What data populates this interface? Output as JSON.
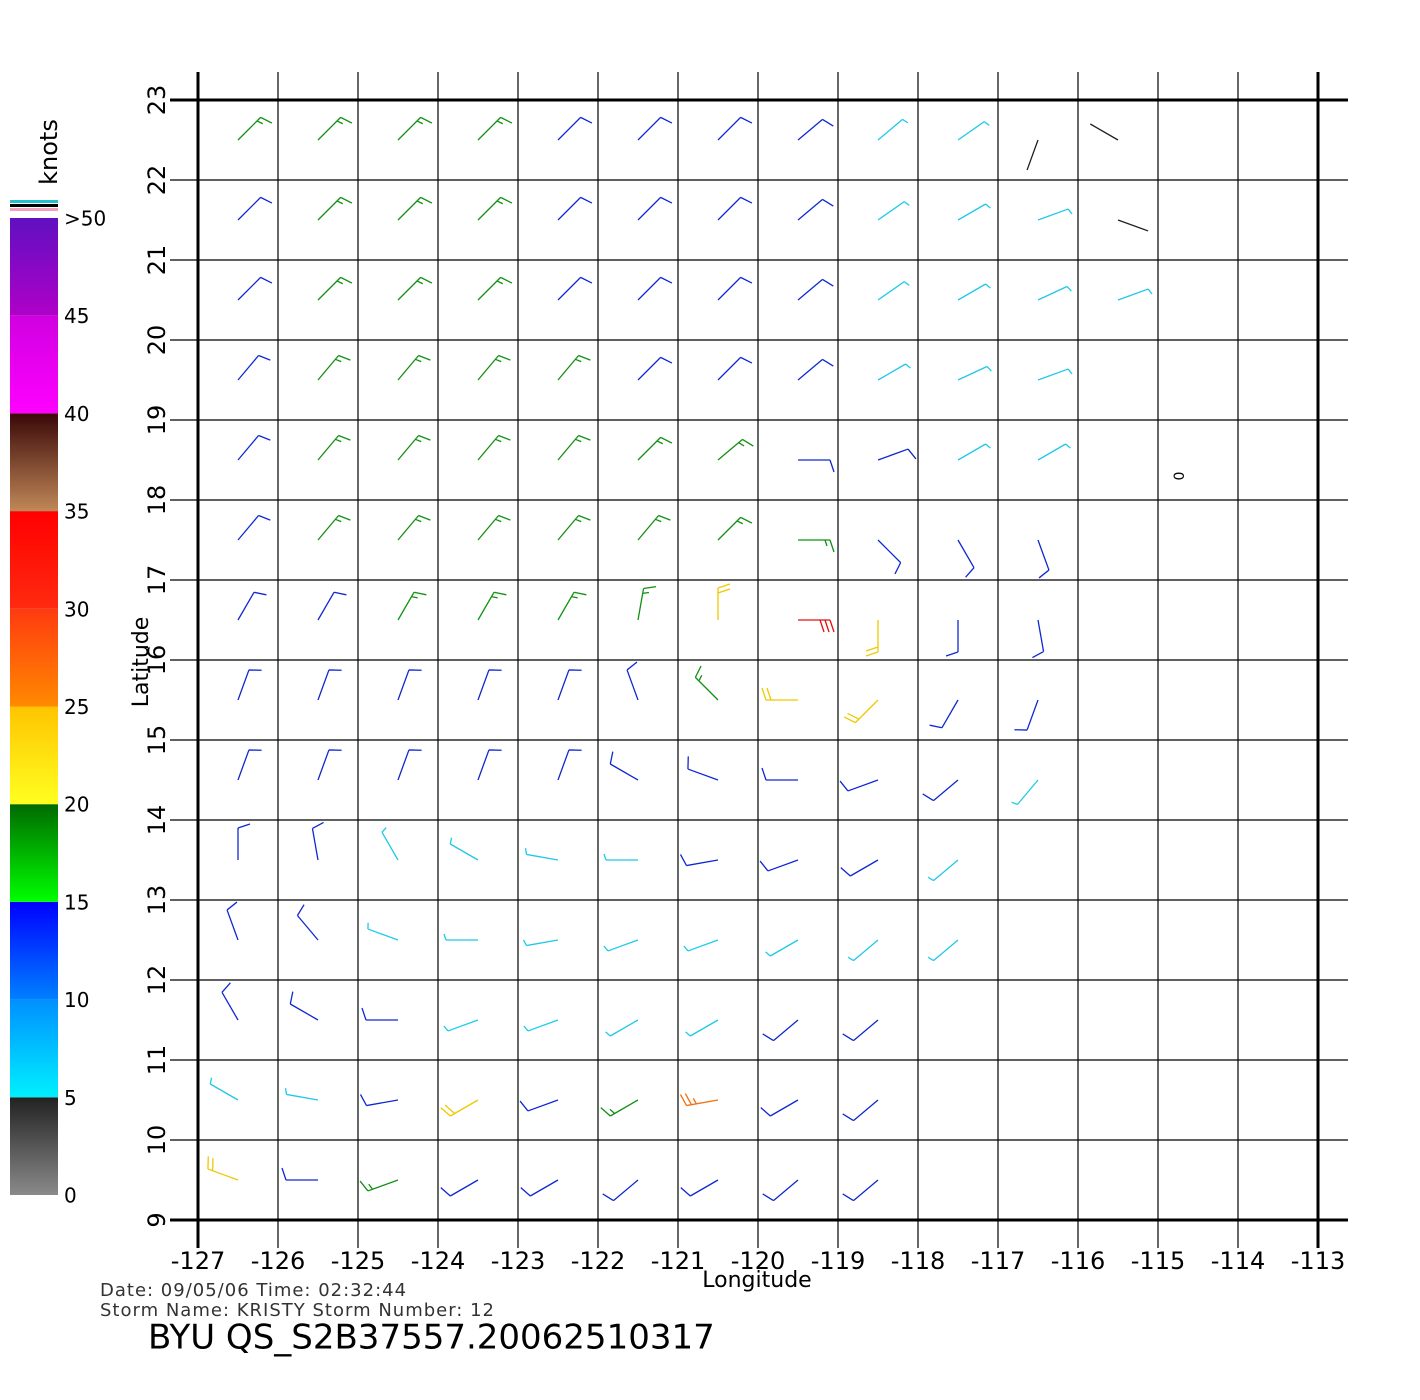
{
  "chart_data": {
    "type": "wind-barb",
    "title": "BYU  QS_S2B37557.20062510317",
    "info": [
      "Date:  09/05/06    Time:  02:32:44",
      "Storm  Name:  KRISTY    Storm  Number:  12"
    ],
    "x_label": "Longitude",
    "y_label": "Latitude",
    "annotation": "0",
    "xlim": [
      -127,
      -113
    ],
    "ylim": [
      9,
      23
    ],
    "xticks": [
      -127,
      -126,
      -125,
      -124,
      -123,
      -122,
      -121,
      -120,
      -119,
      -118,
      -117,
      -116,
      -115,
      -114,
      -113
    ],
    "yticks": [
      9,
      10,
      11,
      12,
      13,
      14,
      15,
      16,
      17,
      18,
      19,
      20,
      21,
      22,
      23
    ],
    "grid": true,
    "colorbar": {
      "label": "knots",
      "lim": [
        0,
        50
      ],
      "ticks": [
        0,
        5,
        10,
        15,
        20,
        25,
        30,
        35,
        40,
        45,
        {
          "value": 50,
          "label": ">50"
        }
      ],
      "band_colors": [
        [
          "#8a8a8a",
          "#222222"
        ],
        [
          "#00f0ff",
          "#0090ff"
        ],
        [
          "#0080ff",
          "#0000ff"
        ],
        [
          "#00ff00",
          "#006a00"
        ],
        [
          "#ffff20",
          "#ffc400"
        ],
        [
          "#ff8a00",
          "#ff3a10"
        ],
        [
          "#ff2a10",
          "#ff0000"
        ],
        [
          "#c08858",
          "#3a0808"
        ],
        [
          "#ff00ff",
          "#d000e0"
        ],
        [
          "#b000c8",
          "#6010c0"
        ]
      ],
      "barb_colors": [
        "#202020",
        "#20c8e8",
        "#1028d0",
        "#109010",
        "#f0c800",
        "#f07010",
        "#e01010",
        "#804020",
        "#e000e0",
        "#7010c0"
      ]
    },
    "rows": [
      {
        "lat": 22.5,
        "lon": [
          -126.5,
          -125.5,
          -124.5,
          -123.5,
          -122.5,
          -121.5,
          -120.5,
          -119.5,
          -118.5,
          -117.5,
          -116.5,
          -115.5
        ],
        "speed": [
          16,
          16,
          17,
          16,
          14,
          13,
          12,
          11,
          9,
          7,
          4,
          4
        ],
        "direction": [
          45,
          45,
          45,
          45,
          45,
          45,
          45,
          50,
          50,
          55,
          200,
          300
        ]
      },
      {
        "lat": 21.5,
        "lon": [
          -126.5,
          -125.5,
          -124.5,
          -123.5,
          -122.5,
          -121.5,
          -120.5,
          -119.5,
          -118.5,
          -117.5,
          -116.5,
          -115.5
        ],
        "speed": [
          13,
          16,
          16,
          16,
          13,
          12,
          12,
          10,
          8,
          7,
          6,
          3
        ],
        "direction": [
          45,
          45,
          45,
          45,
          45,
          45,
          45,
          50,
          55,
          60,
          70,
          110
        ]
      },
      {
        "lat": 20.5,
        "lon": [
          -126.5,
          -125.5,
          -124.5,
          -123.5,
          -122.5,
          -121.5,
          -120.5,
          -119.5,
          -118.5,
          -117.5,
          -116.5,
          -115.5
        ],
        "speed": [
          14,
          16,
          17,
          15,
          13,
          12,
          11,
          10,
          9,
          7,
          7,
          6
        ],
        "direction": [
          45,
          45,
          45,
          45,
          45,
          45,
          45,
          50,
          55,
          60,
          65,
          70
        ]
      },
      {
        "lat": 19.5,
        "lon": [
          -126.5,
          -125.5,
          -124.5,
          -123.5,
          -122.5,
          -121.5,
          -120.5,
          -119.5,
          -118.5,
          -117.5,
          -116.5
        ],
        "speed": [
          13,
          16,
          16,
          17,
          15,
          14,
          12,
          10,
          9,
          8,
          8
        ],
        "direction": [
          40,
          40,
          40,
          40,
          40,
          45,
          45,
          50,
          60,
          65,
          70
        ]
      },
      {
        "lat": 18.5,
        "lon": [
          -126.5,
          -125.5,
          -124.5,
          -123.5,
          -122.5,
          -121.5,
          -120.5,
          -119.5,
          -118.5,
          -117.5,
          -116.5
        ],
        "speed": [
          12,
          15,
          15,
          17,
          17,
          16,
          15,
          12,
          10,
          9,
          9
        ],
        "direction": [
          40,
          40,
          40,
          40,
          40,
          45,
          50,
          90,
          70,
          60,
          60
        ]
      },
      {
        "lat": 17.5,
        "lon": [
          -126.5,
          -125.5,
          -124.5,
          -123.5,
          -122.5,
          -121.5,
          -120.5,
          -119.5,
          -118.5,
          -117.5,
          -116.5
        ],
        "speed": [
          13,
          15,
          16,
          16,
          17,
          17,
          19,
          18,
          12,
          11,
          10
        ],
        "direction": [
          40,
          40,
          40,
          40,
          40,
          40,
          45,
          90,
          135,
          150,
          160
        ]
      },
      {
        "lat": 16.5,
        "lon": [
          -126.5,
          -125.5,
          -124.5,
          -123.5,
          -122.5,
          -121.5,
          -120.5,
          -119.5,
          -118.5,
          -117.5,
          -116.5
        ],
        "speed": [
          12,
          14,
          15,
          15,
          16,
          18,
          23,
          30,
          24,
          14,
          10
        ],
        "direction": [
          30,
          30,
          30,
          30,
          30,
          10,
          0,
          90,
          180,
          180,
          170
        ]
      },
      {
        "lat": 15.5,
        "lon": [
          -126.5,
          -125.5,
          -124.5,
          -123.5,
          -122.5,
          -121.5,
          -120.5,
          -119.5,
          -118.5,
          -117.5,
          -116.5
        ],
        "speed": [
          13,
          13,
          14,
          13,
          13,
          14,
          16,
          22,
          22,
          13,
          10
        ],
        "direction": [
          20,
          20,
          20,
          20,
          20,
          340,
          315,
          270,
          225,
          210,
          200
        ]
      },
      {
        "lat": 14.5,
        "lon": [
          -126.5,
          -125.5,
          -124.5,
          -123.5,
          -122.5,
          -121.5,
          -120.5,
          -119.5,
          -118.5,
          -117.5,
          -116.5
        ],
        "speed": [
          13,
          12,
          12,
          12,
          11,
          11,
          12,
          14,
          13,
          11,
          9
        ],
        "direction": [
          20,
          20,
          20,
          20,
          20,
          300,
          290,
          270,
          250,
          230,
          220
        ]
      },
      {
        "lat": 13.5,
        "lon": [
          -126.5,
          -125.5,
          -124.5,
          -123.5,
          -122.5,
          -121.5,
          -120.5,
          -119.5,
          -118.5,
          -117.5
        ],
        "speed": [
          11,
          10,
          9,
          8,
          8,
          9,
          10,
          11,
          10,
          9
        ],
        "direction": [
          0,
          350,
          330,
          300,
          280,
          270,
          260,
          250,
          240,
          230
        ]
      },
      {
        "lat": 12.5,
        "lon": [
          -126.5,
          -125.5,
          -124.5,
          -123.5,
          -122.5,
          -121.5,
          -120.5,
          -119.5,
          -118.5,
          -117.5
        ],
        "speed": [
          11,
          10,
          8,
          7,
          7,
          7,
          8,
          9,
          9,
          8
        ],
        "direction": [
          340,
          320,
          290,
          270,
          260,
          250,
          250,
          240,
          230,
          230
        ]
      },
      {
        "lat": 11.5,
        "lon": [
          -126.5,
          -125.5,
          -124.5,
          -123.5,
          -122.5,
          -121.5,
          -120.5,
          -119.5,
          -118.5
        ],
        "speed": [
          11,
          12,
          10,
          8,
          8,
          8,
          9,
          10,
          11
        ],
        "direction": [
          330,
          300,
          270,
          250,
          250,
          240,
          240,
          230,
          230
        ]
      },
      {
        "lat": 10.5,
        "lon": [
          -126.5,
          -125.5,
          -124.5,
          -123.5,
          -122.5,
          -121.5,
          -120.5,
          -119.5,
          -118.5
        ],
        "speed": [
          8,
          9,
          11,
          20,
          12,
          18,
          25,
          14,
          11
        ],
        "direction": [
          300,
          280,
          260,
          240,
          250,
          240,
          260,
          240,
          230
        ]
      },
      {
        "lat": 9.5,
        "lon": [
          -126.5,
          -125.5,
          -124.5,
          -123.5,
          -122.5,
          -121.5,
          -120.5,
          -119.5,
          -118.5
        ],
        "speed": [
          24,
          11,
          16,
          13,
          12,
          11,
          12,
          11,
          11
        ],
        "direction": [
          290,
          270,
          250,
          240,
          240,
          230,
          240,
          230,
          230
        ]
      }
    ]
  }
}
